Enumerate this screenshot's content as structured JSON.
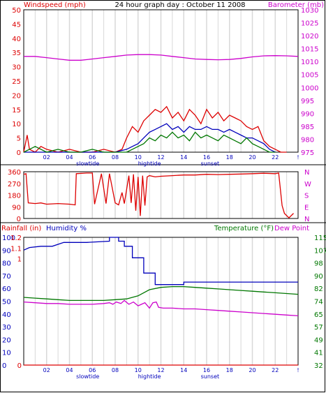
{
  "title": "24 hour graph day : October 11 2008",
  "colors": {
    "red": "#dd0000",
    "green": "#007700",
    "blue": "#0000bb",
    "magenta": "#cc00cc",
    "grid": "#d8d8d8",
    "frame": "#000000"
  },
  "x_ticks": [
    "02",
    "04",
    "06",
    "08",
    "10",
    "12",
    "14",
    "16",
    "18",
    "20",
    "22",
    "!"
  ],
  "events": [
    {
      "label": "slowtide",
      "x": 5.6
    },
    {
      "label": "hightide",
      "x": 11.0
    },
    {
      "label": "sunset",
      "x": 16.3
    }
  ],
  "chart_data": [
    {
      "type": "line",
      "name": "top",
      "left_axis_label": "Windspeed (mph)",
      "right_axis_label": "Barometer (mb)",
      "left_ticks": [
        "50",
        "45",
        "40",
        "35",
        "30",
        "25",
        "20",
        "15",
        "10",
        "5",
        "0"
      ],
      "right_ticks": [
        "1030",
        "1025",
        "1020",
        "1015",
        "1010",
        "1005",
        "1000",
        "995",
        "990",
        "985",
        "980",
        "975"
      ],
      "ylim": [
        0,
        50
      ],
      "right_ylim": [
        975,
        1030
      ],
      "xlim": [
        0,
        24
      ],
      "series": [
        {
          "color": "magenta",
          "axis": "right",
          "x": [
            0,
            1,
            2,
            3,
            4,
            5,
            6,
            7,
            8,
            9,
            10,
            11,
            12,
            13,
            14,
            15,
            16,
            17,
            18,
            19,
            20,
            21,
            22,
            23,
            24
          ],
          "values": [
            1012,
            1012,
            1011.5,
            1011,
            1010.5,
            1010.5,
            1011,
            1011.5,
            1012,
            1012.5,
            1012.7,
            1012.7,
            1012.5,
            1012,
            1011.5,
            1011,
            1010.8,
            1010.7,
            1010.8,
            1011.2,
            1011.8,
            1012.2,
            1012.3,
            1012.2,
            1012
          ]
        },
        {
          "color": "red",
          "axis": "left",
          "x": [
            0,
            0.3,
            0.5,
            1,
            1.5,
            2,
            3,
            4,
            5,
            6,
            7,
            8,
            8.6,
            9,
            9.5,
            10,
            10.5,
            11,
            11.5,
            12,
            12.5,
            13,
            13.5,
            14,
            14.5,
            15,
            15.5,
            16,
            16.5,
            17,
            17.5,
            18,
            18.5,
            19,
            19.5,
            20,
            20.5,
            21,
            21.5,
            22,
            22.5,
            23
          ],
          "values": [
            0,
            6,
            1,
            0,
            2,
            1,
            0,
            1,
            0,
            0,
            1,
            0,
            1,
            5,
            9,
            7,
            11,
            13,
            15,
            14,
            16,
            12,
            14,
            11,
            15,
            13,
            10,
            15,
            12,
            14,
            11,
            13,
            12,
            11,
            9,
            8,
            9,
            4,
            2,
            1,
            0,
            0
          ]
        },
        {
          "color": "blue",
          "axis": "left",
          "x": [
            0,
            2,
            4,
            6,
            8,
            9,
            9.5,
            10,
            10.5,
            11,
            11.5,
            12,
            12.5,
            13,
            13.5,
            14,
            14.5,
            15,
            15.5,
            16,
            16.5,
            17,
            17.5,
            18,
            18.5,
            19,
            19.5,
            20,
            20.5,
            21,
            21.5,
            22
          ],
          "values": [
            0,
            0,
            0,
            0,
            0,
            1,
            2,
            3,
            5,
            7,
            8,
            9,
            10,
            8,
            9,
            7,
            9,
            8,
            8,
            9,
            8,
            8,
            7,
            8,
            7,
            6,
            5,
            5,
            4,
            3,
            1,
            0
          ]
        },
        {
          "color": "green",
          "axis": "left",
          "x": [
            0,
            1,
            2,
            3,
            4,
            5,
            6,
            7,
            8,
            9,
            9.5,
            10,
            10.5,
            11,
            11.5,
            12,
            12.5,
            13,
            13.5,
            14,
            14.5,
            15,
            15.5,
            16,
            16.5,
            17,
            17.5,
            18,
            18.5,
            19,
            19.5,
            20,
            20.5,
            21,
            21.5,
            22
          ],
          "values": [
            0,
            2,
            0,
            1,
            0,
            0,
            1,
            0,
            0,
            0,
            1,
            2,
            3,
            5,
            4,
            6,
            5,
            7,
            5,
            6,
            4,
            7,
            5,
            6,
            5,
            4,
            6,
            5,
            4,
            3,
            5,
            3,
            2,
            1,
            0,
            0
          ]
        }
      ]
    },
    {
      "type": "line",
      "name": "direction",
      "left_ticks": [
        "360",
        "270",
        "180",
        "90",
        "0"
      ],
      "right_ticks": [
        "N",
        "W",
        "S",
        "E",
        "N"
      ],
      "ylim": [
        0,
        360
      ],
      "xlim": [
        0,
        24
      ],
      "series": [
        {
          "color": "red",
          "axis": "left",
          "x": [
            0,
            0.2,
            0.4,
            1,
            1.5,
            2,
            3,
            4,
            4.5,
            4.6,
            5.5,
            6,
            6.2,
            6.8,
            7.2,
            7.5,
            8.0,
            8.3,
            8.6,
            8.8,
            9.2,
            9.4,
            9.6,
            9.8,
            10.0,
            10.2,
            10.4,
            10.6,
            10.8,
            11.0,
            11.5,
            12,
            13,
            14,
            15,
            16,
            17,
            18,
            19,
            20,
            21,
            22,
            22.3,
            22.6,
            22.8,
            23.2,
            23.6
          ],
          "values": [
            340,
            345,
            120,
            115,
            120,
            110,
            115,
            110,
            105,
            345,
            350,
            350,
            110,
            345,
            115,
            345,
            120,
            105,
            200,
            115,
            330,
            120,
            340,
            60,
            320,
            20,
            330,
            100,
            320,
            330,
            320,
            325,
            330,
            335,
            335,
            340,
            338,
            340,
            342,
            345,
            348,
            345,
            350,
            100,
            40,
            5,
            40
          ]
        }
      ]
    },
    {
      "type": "line",
      "name": "bottom",
      "left_axis_labels": [
        "Rainfall (in)",
        "Humidity %"
      ],
      "right_axis_labels": [
        "Temperature (°F)",
        "Dew Point"
      ],
      "rain_ticks": [
        "1.2",
        "1.1",
        "1",
        "",
        "",
        "",
        "",
        "",
        "",
        "",
        "",
        "",
        "0"
      ],
      "humidity_ticks": [
        "100",
        "90",
        "80",
        "70",
        "60",
        "50",
        "40",
        "30",
        "20",
        "10",
        "0"
      ],
      "temperature_ticks": [
        "115",
        "107",
        "98",
        "90",
        "82",
        "74",
        "65",
        "57",
        "49",
        "41",
        "32"
      ],
      "ylim_humidity": [
        0,
        100
      ],
      "ylim_temperature": [
        32,
        115
      ],
      "xlim": [
        0,
        24
      ],
      "series": [
        {
          "color": "blue",
          "axis": "humidity",
          "x": [
            0,
            0.5,
            1.5,
            2.5,
            3.5,
            5.5,
            7.5,
            7.5,
            8.3,
            8.3,
            8.8,
            8.8,
            9.5,
            9.5,
            10.5,
            10.5,
            11.5,
            11.5,
            12.5,
            12.5,
            14,
            14,
            24
          ],
          "values": [
            90,
            92,
            93,
            93,
            96,
            96,
            97,
            100,
            100,
            97,
            97,
            93,
            93,
            84,
            84,
            72,
            72,
            63,
            63,
            63,
            63,
            65,
            65
          ]
        },
        {
          "color": "green",
          "axis": "temperature",
          "x": [
            0,
            1,
            2,
            3,
            4,
            5,
            6,
            7,
            8,
            9,
            10,
            11,
            12,
            13,
            14,
            15,
            16,
            17,
            18,
            19,
            20,
            21,
            22,
            23,
            24
          ],
          "values": [
            76,
            75.5,
            75,
            74.5,
            74,
            74,
            74,
            74,
            74.5,
            75,
            77,
            81,
            82.5,
            83,
            83,
            82.5,
            82,
            81.5,
            81,
            80.5,
            80,
            79.5,
            79,
            78.5,
            78
          ]
        },
        {
          "color": "magenta",
          "axis": "temperature",
          "x": [
            0,
            1,
            2,
            3,
            4,
            5,
            6,
            7,
            7.5,
            7.8,
            8.1,
            8.5,
            8.8,
            9.2,
            9.6,
            10.0,
            10.3,
            10.6,
            11.0,
            11.3,
            11.6,
            11.8,
            12.2,
            13,
            14,
            15,
            16,
            17,
            18,
            19,
            20,
            21,
            22,
            23,
            24
          ],
          "values": [
            73,
            72.5,
            72,
            72,
            71.5,
            71.5,
            71.5,
            72,
            72.5,
            71.5,
            73,
            72,
            74,
            71.5,
            73,
            70.5,
            71.5,
            72.5,
            69,
            72.5,
            73,
            69.5,
            69,
            69,
            68.5,
            68.5,
            68,
            67.5,
            67,
            66.5,
            66,
            65.5,
            65,
            64.5,
            64
          ]
        },
        {
          "color": "red",
          "axis": "humidity",
          "x": [
            0,
            24
          ],
          "values": [
            0,
            0
          ]
        }
      ]
    }
  ]
}
